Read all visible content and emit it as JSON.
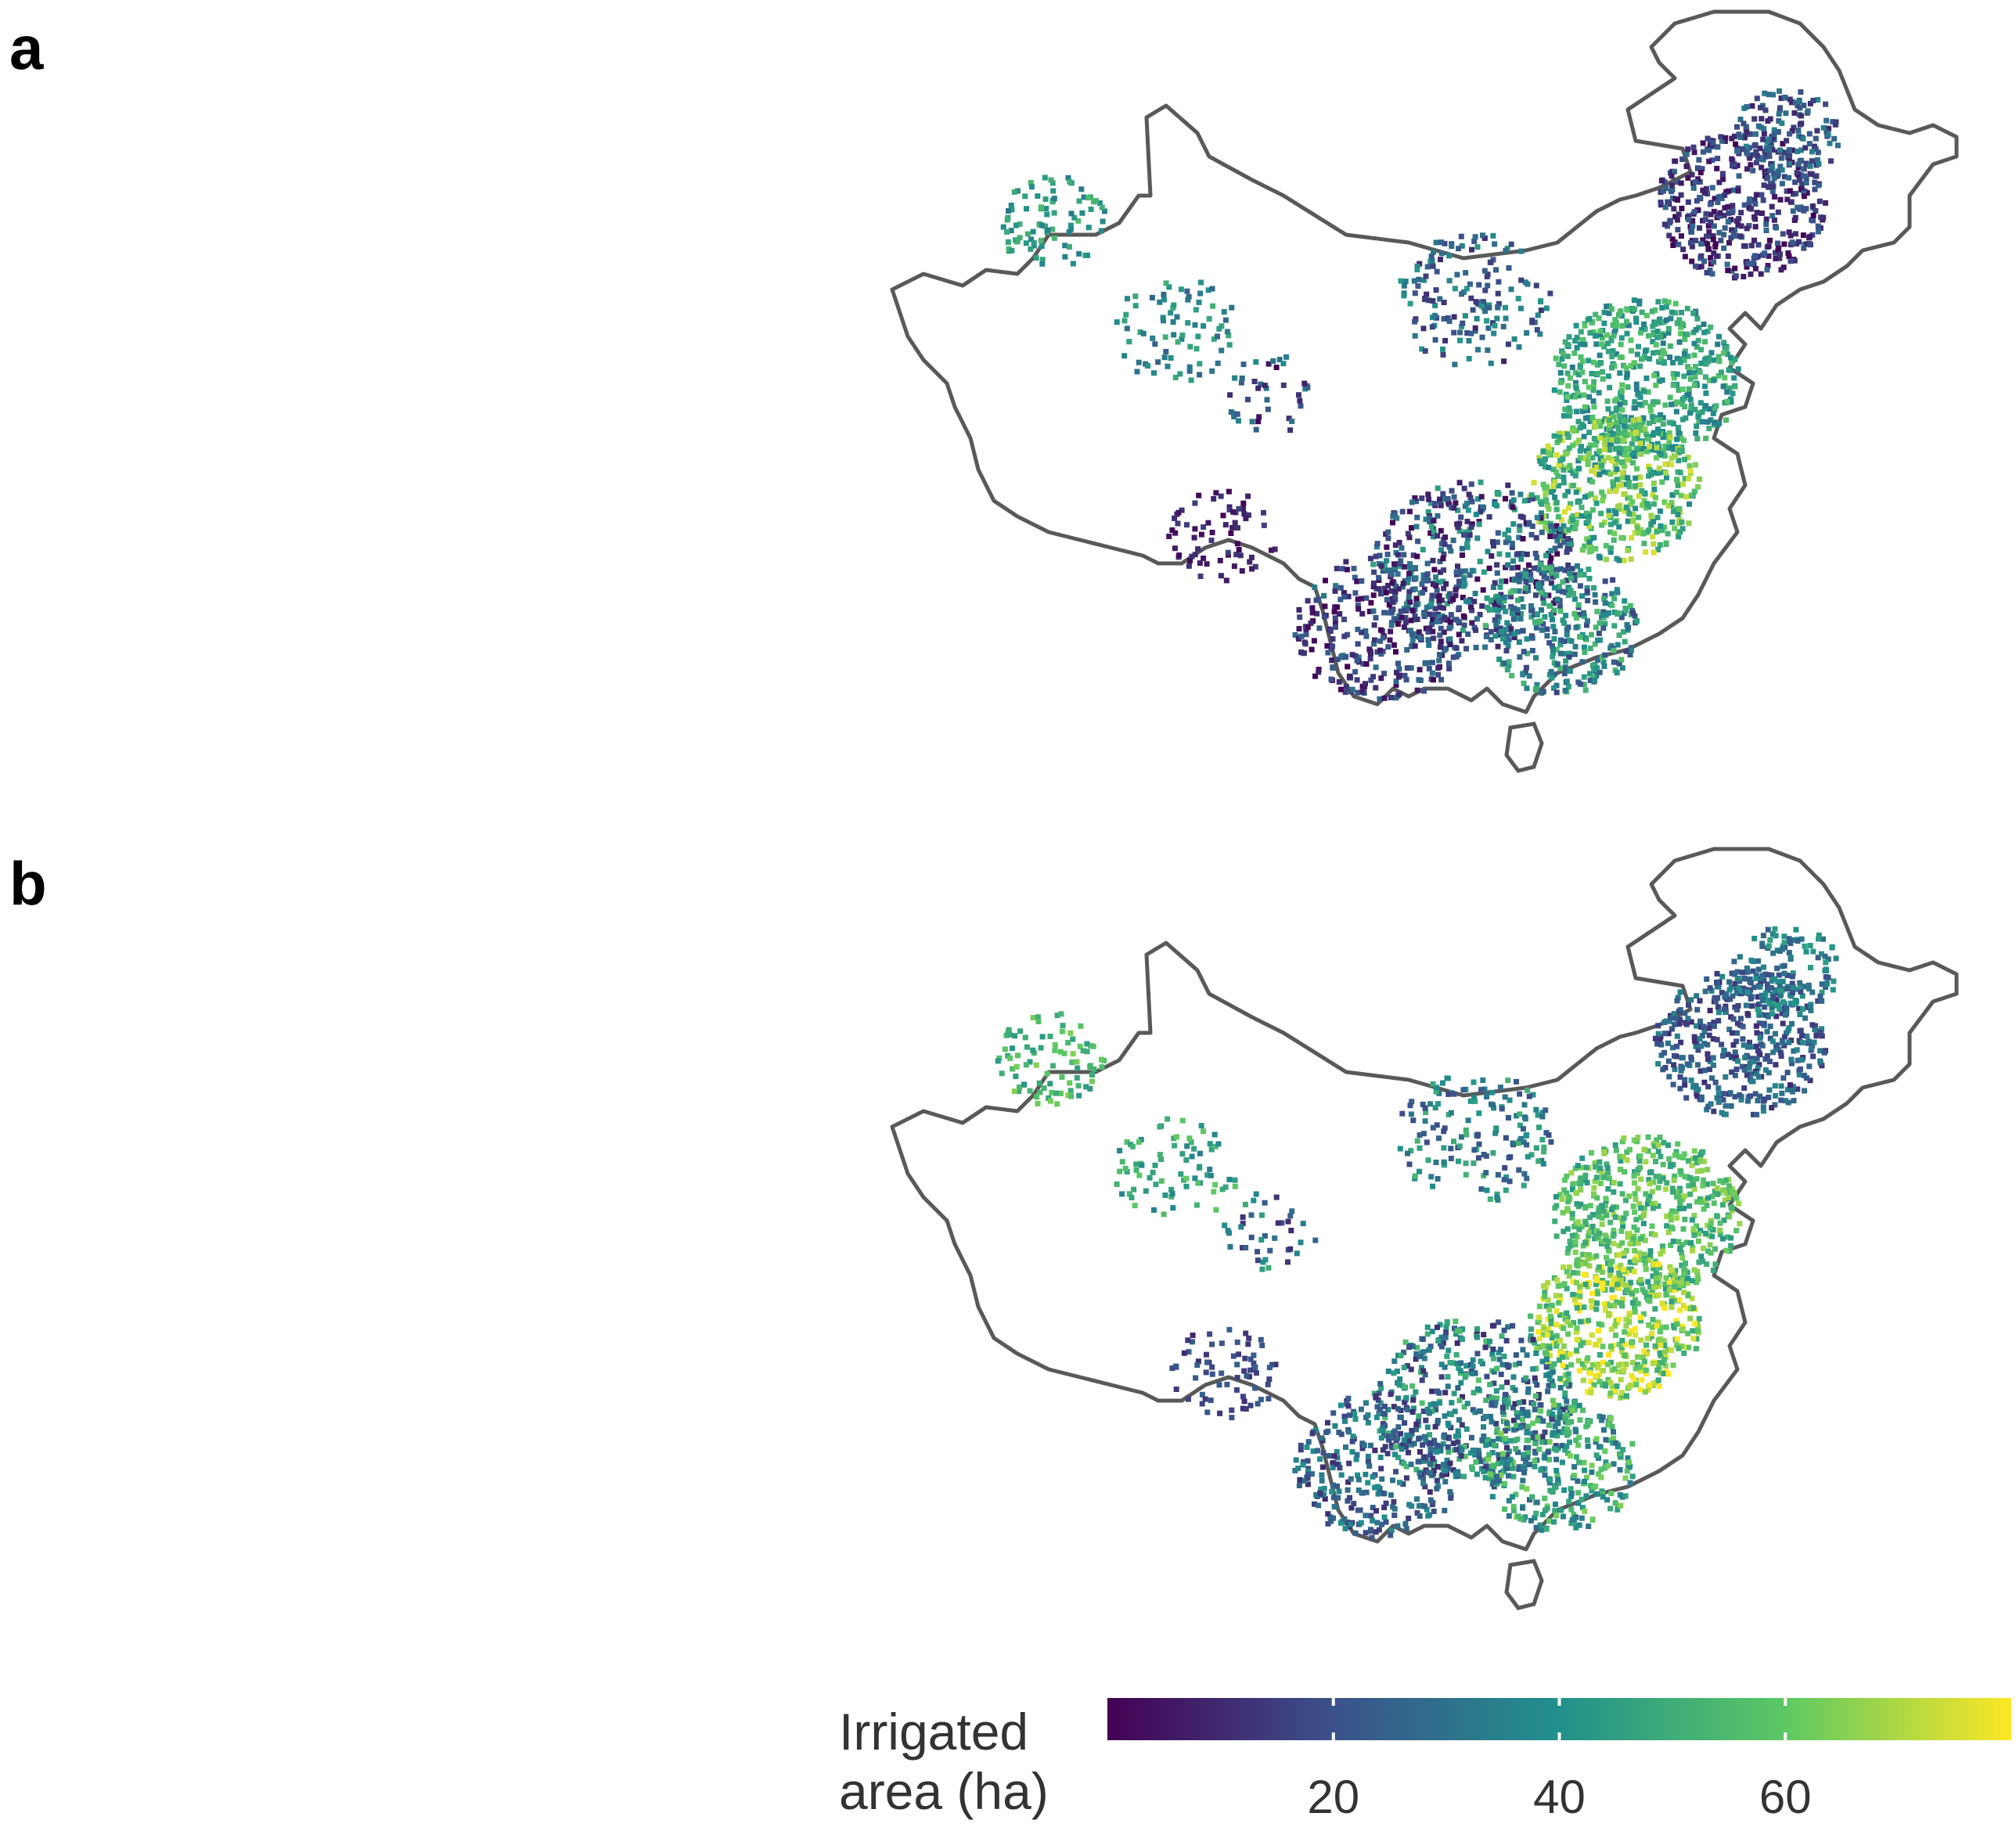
{
  "panels": [
    {
      "label": "a"
    },
    {
      "label": "b"
    }
  ],
  "legend": {
    "title_line1": "Irrigated",
    "title_line2": "area (ha)",
    "ticks": [
      "20",
      "40",
      "60"
    ],
    "range": [
      0,
      80
    ],
    "colormap": "viridis",
    "colors": [
      "#440154",
      "#3b528b",
      "#21908c",
      "#5dc863",
      "#fde725"
    ]
  },
  "map": {
    "outline_color": "#595959",
    "background": "#ffffff"
  }
}
